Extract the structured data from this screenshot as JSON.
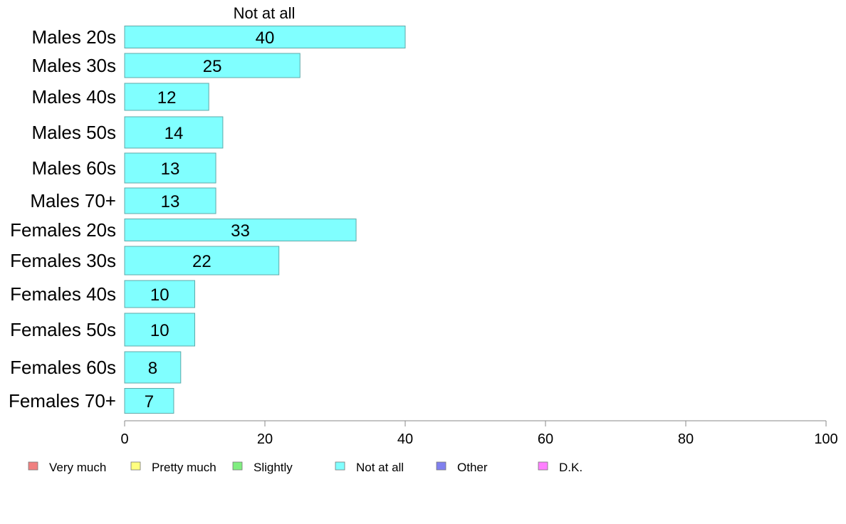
{
  "chart_data": {
    "type": "bar",
    "orientation": "horizontal",
    "title": "Not at all",
    "categories": [
      "Males 20s",
      "Males 30s",
      "Males 40s",
      "Males 50s",
      "Males 60s",
      "Males 70+",
      "Females 20s",
      "Females 30s",
      "Females 40s",
      "Females 50s",
      "Females 60s",
      "Females 70+"
    ],
    "series": [
      {
        "name": "Not at all",
        "values": [
          40,
          25,
          12,
          14,
          13,
          13,
          33,
          22,
          10,
          10,
          8,
          7
        ]
      }
    ],
    "value_labels": [
      "40",
      "25",
      "12",
      "14",
      "13",
      "13",
      "33",
      "22",
      "10",
      "10",
      "8",
      "7"
    ],
    "xlim": [
      0,
      100
    ],
    "xticks": [
      0,
      20,
      40,
      60,
      80,
      100
    ],
    "xtick_labels": [
      "0",
      "20",
      "40",
      "60",
      "80",
      "100"
    ],
    "bar_color": "#80ffff",
    "grid": false,
    "legend": {
      "placement": "bottom",
      "entries": [
        {
          "label": "Very much",
          "color": "#f08080"
        },
        {
          "label": "Pretty much",
          "color": "#ffff80"
        },
        {
          "label": "Slightly",
          "color": "#80ee80"
        },
        {
          "label": "Not at all",
          "color": "#80ffff"
        },
        {
          "label": "Other",
          "color": "#8080ee"
        },
        {
          "label": "D.K.",
          "color": "#ff80ff"
        }
      ]
    }
  }
}
